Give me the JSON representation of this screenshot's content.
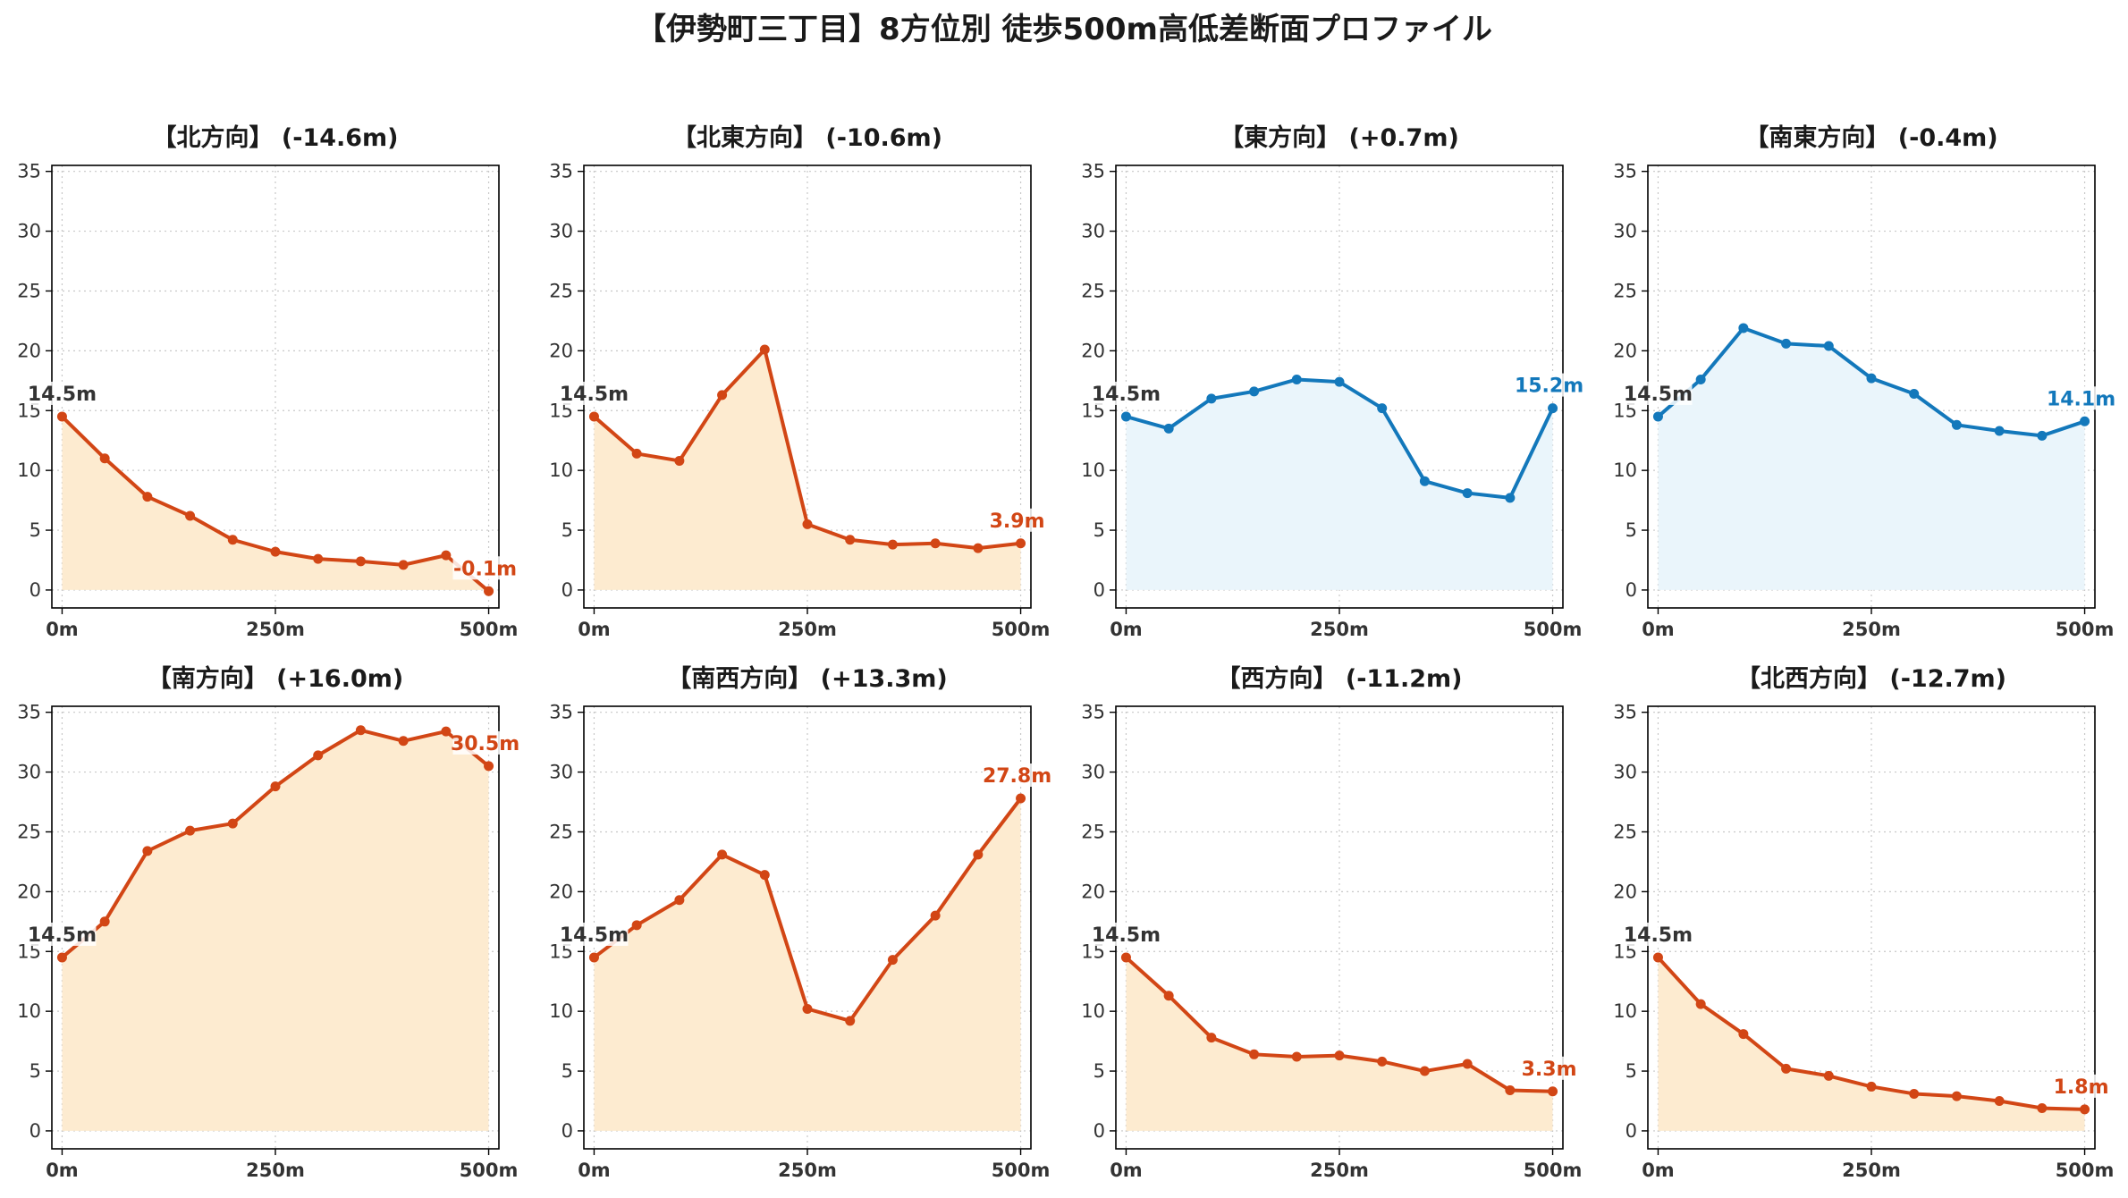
{
  "title": "【伊勢町三丁目】8方位別 徒歩500m高低差断面プロファイル",
  "colors": {
    "down_line": "#d24615",
    "down_fill": "#fdebd0",
    "up_line": "#1378bb",
    "up_fill": "#eaf5fb",
    "start_label": "#333333",
    "grid": "#c8c8c8"
  },
  "chart_data": [
    {
      "type": "area",
      "title": "【北方向】 (-14.6m)",
      "color": "down",
      "x": [
        0,
        50,
        100,
        150,
        200,
        250,
        300,
        350,
        400,
        450,
        500
      ],
      "y": [
        14.5,
        11.0,
        7.8,
        6.2,
        4.2,
        3.2,
        2.6,
        2.4,
        2.1,
        2.9,
        -0.1
      ],
      "start_label": "14.5m",
      "end_label": "-0.1m",
      "xticks": [
        0,
        250,
        500
      ],
      "xtick_labels": [
        "0m",
        "250m",
        "500m"
      ],
      "yticks": [
        0,
        5,
        10,
        15,
        20,
        25,
        30,
        35
      ],
      "ylim": [
        -1.5,
        35.5
      ],
      "xlim": [
        -12,
        512
      ],
      "grid": true
    },
    {
      "type": "area",
      "title": "【北東方向】 (-10.6m)",
      "color": "down",
      "x": [
        0,
        50,
        100,
        150,
        200,
        250,
        300,
        350,
        400,
        450,
        500
      ],
      "y": [
        14.5,
        11.4,
        10.8,
        16.3,
        20.1,
        5.5,
        4.2,
        3.8,
        3.9,
        3.5,
        3.9
      ],
      "start_label": "14.5m",
      "end_label": "3.9m",
      "xticks": [
        0,
        250,
        500
      ],
      "xtick_labels": [
        "0m",
        "250m",
        "500m"
      ],
      "yticks": [
        0,
        5,
        10,
        15,
        20,
        25,
        30,
        35
      ],
      "ylim": [
        -1.5,
        35.5
      ],
      "xlim": [
        -12,
        512
      ],
      "grid": true
    },
    {
      "type": "area",
      "title": "【東方向】 (+0.7m)",
      "color": "up",
      "x": [
        0,
        50,
        100,
        150,
        200,
        250,
        300,
        350,
        400,
        450,
        500
      ],
      "y": [
        14.5,
        13.5,
        16.0,
        16.6,
        17.6,
        17.4,
        15.2,
        9.1,
        8.1,
        7.7,
        15.2
      ],
      "start_label": "14.5m",
      "end_label": "15.2m",
      "xticks": [
        0,
        250,
        500
      ],
      "xtick_labels": [
        "0m",
        "250m",
        "500m"
      ],
      "yticks": [
        0,
        5,
        10,
        15,
        20,
        25,
        30,
        35
      ],
      "ylim": [
        -1.5,
        35.5
      ],
      "xlim": [
        -12,
        512
      ],
      "grid": true
    },
    {
      "type": "area",
      "title": "【南東方向】 (-0.4m)",
      "color": "up",
      "x": [
        0,
        50,
        100,
        150,
        200,
        250,
        300,
        350,
        400,
        450,
        500
      ],
      "y": [
        14.5,
        17.6,
        21.9,
        20.6,
        20.4,
        17.7,
        16.4,
        13.8,
        13.3,
        12.9,
        14.1
      ],
      "start_label": "14.5m",
      "end_label": "14.1m",
      "xticks": [
        0,
        250,
        500
      ],
      "xtick_labels": [
        "0m",
        "250m",
        "500m"
      ],
      "yticks": [
        0,
        5,
        10,
        15,
        20,
        25,
        30,
        35
      ],
      "ylim": [
        -1.5,
        35.5
      ],
      "xlim": [
        -12,
        512
      ],
      "grid": true
    },
    {
      "type": "area",
      "title": "【南方向】 (+16.0m)",
      "color": "down",
      "x": [
        0,
        50,
        100,
        150,
        200,
        250,
        300,
        350,
        400,
        450,
        500
      ],
      "y": [
        14.5,
        17.5,
        23.4,
        25.1,
        25.7,
        28.8,
        31.4,
        33.5,
        32.6,
        33.4,
        30.5
      ],
      "start_label": "14.5m",
      "end_label": "30.5m",
      "xticks": [
        0,
        250,
        500
      ],
      "xtick_labels": [
        "0m",
        "250m",
        "500m"
      ],
      "yticks": [
        0,
        5,
        10,
        15,
        20,
        25,
        30,
        35
      ],
      "ylim": [
        -1.5,
        35.5
      ],
      "xlim": [
        -12,
        512
      ],
      "grid": true
    },
    {
      "type": "area",
      "title": "【南西方向】 (+13.3m)",
      "color": "down",
      "x": [
        0,
        50,
        100,
        150,
        200,
        250,
        300,
        350,
        400,
        450,
        500
      ],
      "y": [
        14.5,
        17.2,
        19.3,
        23.1,
        21.4,
        10.2,
        9.2,
        14.3,
        18.0,
        23.1,
        27.8
      ],
      "start_label": "14.5m",
      "end_label": "27.8m",
      "xticks": [
        0,
        250,
        500
      ],
      "xtick_labels": [
        "0m",
        "250m",
        "500m"
      ],
      "yticks": [
        0,
        5,
        10,
        15,
        20,
        25,
        30,
        35
      ],
      "ylim": [
        -1.5,
        35.5
      ],
      "xlim": [
        -12,
        512
      ],
      "grid": true
    },
    {
      "type": "area",
      "title": "【西方向】 (-11.2m)",
      "color": "down",
      "x": [
        0,
        50,
        100,
        150,
        200,
        250,
        300,
        350,
        400,
        450,
        500
      ],
      "y": [
        14.5,
        11.3,
        7.8,
        6.4,
        6.2,
        6.3,
        5.8,
        5.0,
        5.6,
        3.4,
        3.3
      ],
      "start_label": "14.5m",
      "end_label": "3.3m",
      "xticks": [
        0,
        250,
        500
      ],
      "xtick_labels": [
        "0m",
        "250m",
        "500m"
      ],
      "yticks": [
        0,
        5,
        10,
        15,
        20,
        25,
        30,
        35
      ],
      "ylim": [
        -1.5,
        35.5
      ],
      "xlim": [
        -12,
        512
      ],
      "grid": true
    },
    {
      "type": "area",
      "title": "【北西方向】 (-12.7m)",
      "color": "down",
      "x": [
        0,
        50,
        100,
        150,
        200,
        250,
        300,
        350,
        400,
        450,
        500
      ],
      "y": [
        14.5,
        10.6,
        8.1,
        5.2,
        4.6,
        3.7,
        3.1,
        2.9,
        2.5,
        1.9,
        1.8
      ],
      "start_label": "14.5m",
      "end_label": "1.8m",
      "xticks": [
        0,
        250,
        500
      ],
      "xtick_labels": [
        "0m",
        "250m",
        "500m"
      ],
      "yticks": [
        0,
        5,
        10,
        15,
        20,
        25,
        30,
        35
      ],
      "ylim": [
        -1.5,
        35.5
      ],
      "xlim": [
        -12,
        512
      ],
      "grid": true
    }
  ]
}
